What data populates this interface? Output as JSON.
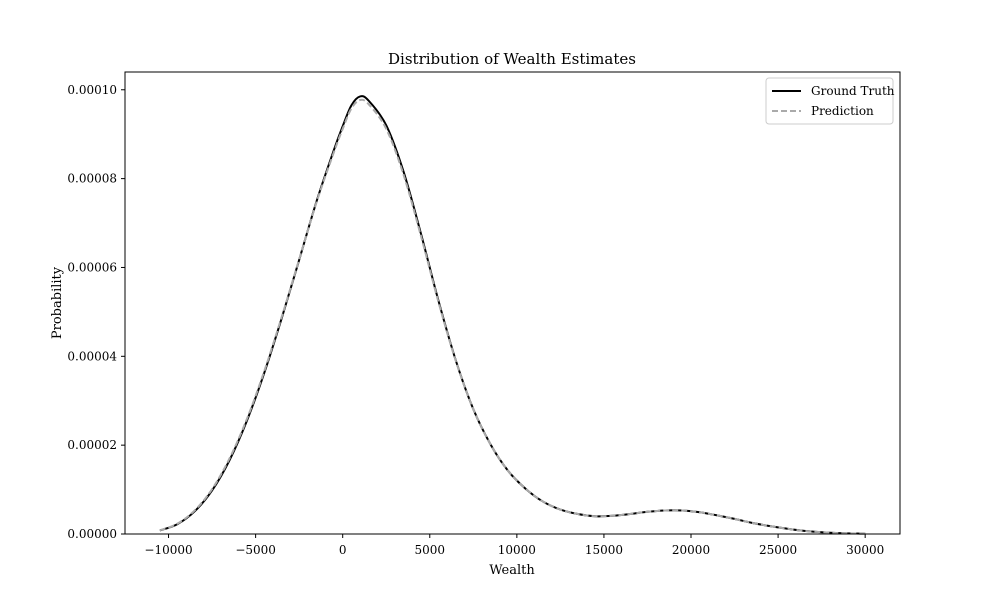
{
  "chart_data": {
    "type": "line",
    "title": "Distribution of Wealth Estimates",
    "xlabel": "Wealth",
    "ylabel": "Probability",
    "xlim": [
      -12500,
      32000
    ],
    "ylim": [
      0,
      0.000104
    ],
    "xticks": [
      -10000,
      -5000,
      0,
      5000,
      10000,
      15000,
      20000,
      25000,
      30000
    ],
    "xtick_labels": [
      "−10000",
      "−5000",
      "0",
      "5000",
      "10000",
      "15000",
      "20000",
      "25000",
      "30000"
    ],
    "yticks": [
      0,
      2e-05,
      4e-05,
      6e-05,
      8e-05,
      0.0001
    ],
    "ytick_labels": [
      "0.00000",
      "0.00002",
      "0.00004",
      "0.00006",
      "0.00008",
      "0.00010"
    ],
    "grid": false,
    "legend_position": "top-right",
    "series": [
      {
        "name": "Ground Truth",
        "color": "#000000",
        "style": "solid",
        "x": [
          -10500,
          -9500,
          -8500,
          -7500,
          -6500,
          -5500,
          -4500,
          -3500,
          -2500,
          -1500,
          -500,
          0,
          500,
          1000,
          1500,
          2500,
          3500,
          4500,
          5500,
          6500,
          7500,
          8500,
          9500,
          10500,
          11500,
          12500,
          13500,
          14500,
          15500,
          16500,
          17500,
          18500,
          19500,
          20500,
          21500,
          22500,
          23500,
          24500,
          25500,
          26500,
          27500,
          28500,
          29500,
          30000
        ],
        "y": [
          8e-07,
          2.2e-06,
          5.1e-06,
          9.8e-06,
          1.66e-05,
          2.55e-05,
          3.63e-05,
          4.86e-05,
          6.17e-05,
          7.49e-05,
          8.65e-05,
          9.18e-05,
          9.65e-05,
          9.85e-05,
          9.75e-05,
          9.2e-05,
          8.15e-05,
          6.75e-05,
          5.25e-05,
          3.9e-05,
          2.81e-05,
          2.01e-05,
          1.42e-05,
          1.02e-05,
          7.3e-06,
          5.5e-06,
          4.5e-06,
          4e-06,
          4.1e-06,
          4.5e-06,
          5e-06,
          5.3e-06,
          5.3e-06,
          4.9e-06,
          4.2e-06,
          3.4e-06,
          2.5e-06,
          1.8e-06,
          1.2e-06,
          7e-07,
          4e-07,
          2e-07,
          1e-07,
          1e-07
        ]
      },
      {
        "name": "Prediction",
        "color": "#aaaaaa",
        "style": "dashed",
        "x": [
          -10500,
          -9500,
          -8500,
          -7500,
          -6500,
          -5500,
          -4500,
          -3500,
          -2500,
          -1500,
          -500,
          0,
          500,
          1000,
          1500,
          2500,
          3500,
          4500,
          5500,
          6500,
          7500,
          8500,
          9500,
          10500,
          11500,
          12500,
          13500,
          14500,
          15500,
          16500,
          17500,
          18500,
          19500,
          20500,
          21500,
          22500,
          23500,
          24500,
          25500,
          26500,
          27500,
          28500,
          29500,
          30000
        ],
        "y": [
          8e-07,
          2.3e-06,
          5.3e-06,
          1.01e-05,
          1.7e-05,
          2.59e-05,
          3.67e-05,
          4.89e-05,
          6.18e-05,
          7.47e-05,
          8.6e-05,
          9.12e-05,
          9.58e-05,
          9.77e-05,
          9.67e-05,
          9.12e-05,
          8.08e-05,
          6.7e-05,
          5.22e-05,
          3.89e-05,
          2.81e-05,
          2.01e-05,
          1.42e-05,
          1.02e-05,
          7.3e-06,
          5.5e-06,
          4.5e-06,
          4e-06,
          4.1e-06,
          4.5e-06,
          5e-06,
          5.3e-06,
          5.3e-06,
          4.9e-06,
          4.2e-06,
          3.4e-06,
          2.5e-06,
          1.8e-06,
          1.2e-06,
          7e-07,
          4e-07,
          2e-07,
          1e-07,
          1e-07
        ]
      }
    ]
  }
}
